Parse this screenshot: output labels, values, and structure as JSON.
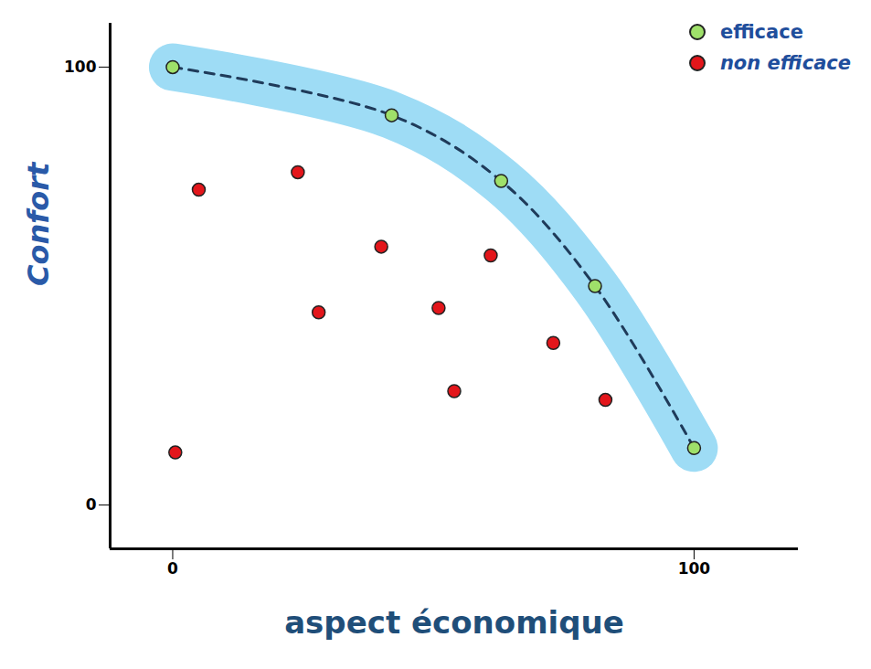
{
  "chart_data": {
    "type": "scatter",
    "x_label": "aspect économique",
    "y_label": "Confort",
    "xlim": [
      -12,
      120
    ],
    "ylim": [
      -10,
      110
    ],
    "xticks": [
      0,
      100
    ],
    "yticks": [
      0,
      100
    ],
    "legend": "top-right",
    "series": [
      {
        "name": "efficace",
        "color": "#9fe06a",
        "marker": "circle",
        "line_style": "dashed",
        "x": [
          0,
          42,
          63,
          81,
          100
        ],
        "values": [
          100,
          89,
          74,
          50,
          13
        ]
      },
      {
        "name": "non efficace",
        "color": "#e3161b",
        "marker": "circle",
        "x": [
          5,
          24,
          40,
          61,
          28,
          51,
          73,
          54,
          83,
          0.5
        ],
        "values": [
          72,
          76,
          59,
          57,
          44,
          45,
          37,
          26,
          24,
          12
        ]
      }
    ]
  }
}
